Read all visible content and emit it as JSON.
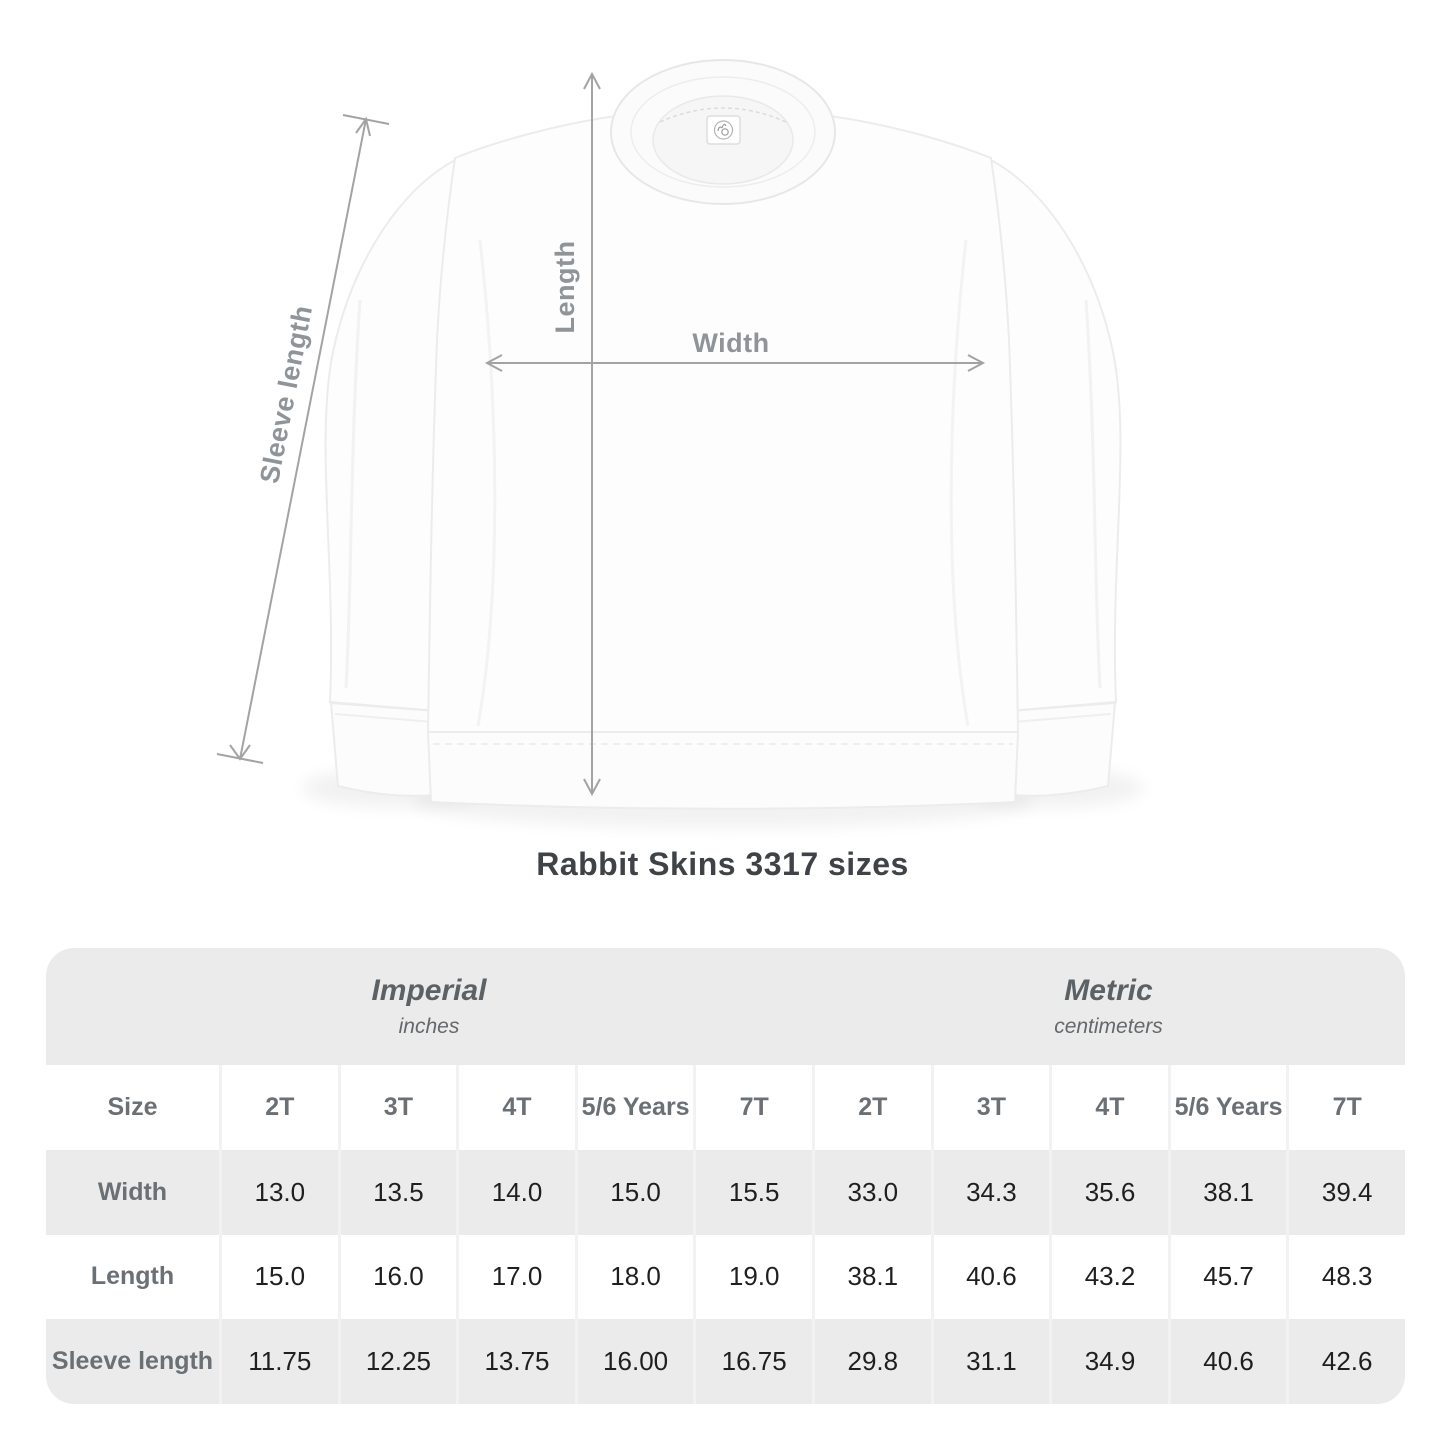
{
  "title": "Rabbit Skins 3317 sizes",
  "diagram": {
    "labels": {
      "width": "Width",
      "length": "Length",
      "sleeve_length": "Sleeve length"
    },
    "garment": "white crewneck sweatshirt with neck tag (rabbit logo)"
  },
  "table": {
    "sections": [
      {
        "label": "Imperial",
        "sublabel": "inches"
      },
      {
        "label": "Metric",
        "sublabel": "centimeters"
      }
    ],
    "size_header": "Size",
    "columns": [
      "2T",
      "3T",
      "4T",
      "5/6 Years",
      "7T",
      "2T",
      "3T",
      "4T",
      "5/6 Years",
      "7T"
    ],
    "rows": [
      {
        "label": "Width",
        "values": [
          "13.0",
          "13.5",
          "14.0",
          "15.0",
          "15.5",
          "33.0",
          "34.3",
          "35.6",
          "38.1",
          "39.4"
        ]
      },
      {
        "label": "Length",
        "values": [
          "15.0",
          "16.0",
          "17.0",
          "18.0",
          "19.0",
          "38.1",
          "40.6",
          "43.2",
          "45.7",
          "48.3"
        ]
      },
      {
        "label": "Sleeve length",
        "values": [
          "11.75",
          "12.25",
          "13.75",
          "16.00",
          "16.75",
          "29.8",
          "31.1",
          "34.9",
          "40.6",
          "42.6"
        ]
      }
    ]
  },
  "chart_data": {
    "type": "table",
    "title": "Rabbit Skins 3317 sizes",
    "column_groups": [
      {
        "name": "Imperial",
        "unit": "inches",
        "columns": [
          "2T",
          "3T",
          "4T",
          "5/6 Years",
          "7T"
        ]
      },
      {
        "name": "Metric",
        "unit": "centimeters",
        "columns": [
          "2T",
          "3T",
          "4T",
          "5/6 Years",
          "7T"
        ]
      }
    ],
    "measurements": [
      {
        "name": "Width",
        "imperial": [
          13.0,
          13.5,
          14.0,
          15.0,
          15.5
        ],
        "metric": [
          33.0,
          34.3,
          35.6,
          38.1,
          39.4
        ]
      },
      {
        "name": "Length",
        "imperial": [
          15.0,
          16.0,
          17.0,
          18.0,
          19.0
        ],
        "metric": [
          38.1,
          40.6,
          43.2,
          45.7,
          48.3
        ]
      },
      {
        "name": "Sleeve length",
        "imperial": [
          11.75,
          12.25,
          13.75,
          16.0,
          16.75
        ],
        "metric": [
          29.8,
          31.1,
          34.9,
          40.6,
          42.6
        ]
      }
    ]
  },
  "colors": {
    "table_gray": "#ebebeb",
    "row_white": "#ffffff",
    "band_text": "#5c6165",
    "label_text": "#6b7075",
    "value_text": "#1f1f1f",
    "arrow": "#a3a3a3",
    "diagram_label": "#8f9499",
    "title_text": "#3f4246"
  }
}
